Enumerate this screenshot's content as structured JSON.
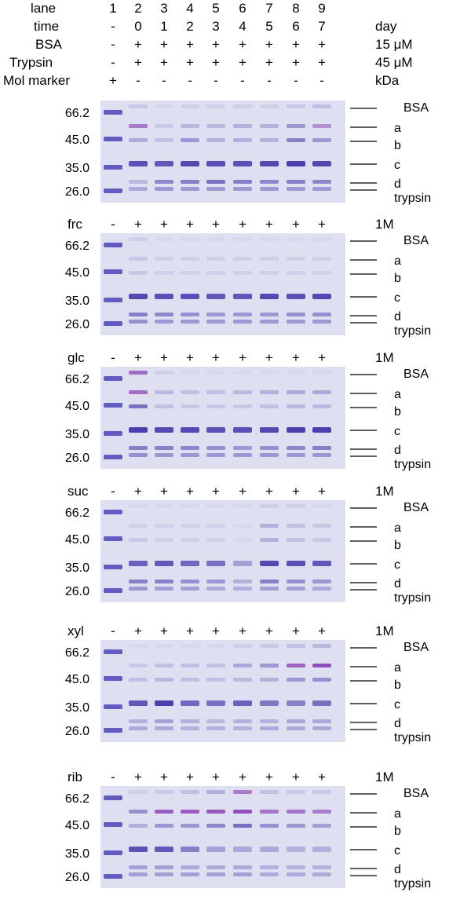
{
  "header": {
    "rows": [
      {
        "label": "lane",
        "values": [
          "1",
          "2",
          "3",
          "4",
          "5",
          "6",
          "7",
          "8",
          "9"
        ],
        "unit": ""
      },
      {
        "label": "time",
        "values": [
          "-",
          "0",
          "1",
          "2",
          "3",
          "4",
          "5",
          "6",
          "7"
        ],
        "unit": "day"
      },
      {
        "label": "BSA",
        "values": [
          "-",
          "+",
          "+",
          "+",
          "+",
          "+",
          "+",
          "+",
          "+"
        ],
        "unit": "15 μM"
      },
      {
        "label": "Trypsin",
        "values": [
          "-",
          "+",
          "+",
          "+",
          "+",
          "+",
          "+",
          "+",
          "+"
        ],
        "unit": "45 μM"
      },
      {
        "label": "Mol marker",
        "values": [
          "+",
          "-",
          "-",
          "-",
          "-",
          "-",
          "-",
          "-",
          "-"
        ],
        "unit": "kDa"
      }
    ]
  },
  "colors": {
    "gel_bg": "#d3d6ec",
    "band_dark": "#3b2fa6",
    "band_purple": "#8a3fb5",
    "band_marker": "#4a44b8"
  },
  "marker_weights": [
    "66.2",
    "45.0",
    "35.0",
    "26.0"
  ],
  "band_labels": {
    "bsa": "BSA",
    "a": "a",
    "b": "b",
    "c": "c",
    "d": "d",
    "trypsin": "trypsin"
  },
  "panels": [
    {
      "sugar": "",
      "signs": [],
      "conc": "",
      "intensities": {
        "bsa": [
          0,
          0.15,
          0.05,
          0.1,
          0.1,
          0.1,
          0.1,
          0.15,
          0.2
        ],
        "a": [
          0,
          0.7,
          0.15,
          0.25,
          0.25,
          0.3,
          0.3,
          0.45,
          0.55
        ],
        "b": [
          0,
          0.35,
          0.2,
          0.45,
          0.3,
          0.3,
          0.3,
          0.6,
          0.45
        ],
        "c": [
          0,
          0.9,
          0.85,
          0.95,
          0.9,
          0.9,
          0.95,
          1,
          0.95
        ],
        "d": [
          0,
          0.25,
          0.55,
          0.6,
          0.7,
          0.6,
          0.55,
          0.6,
          0.55
        ],
        "trypsin": [
          0,
          0.35,
          0.45,
          0.45,
          0.45,
          0.45,
          0.45,
          0.45,
          0.45
        ]
      }
    },
    {
      "sugar": "frc",
      "signs": [
        "-",
        "+",
        "+",
        "+",
        "+",
        "+",
        "+",
        "+",
        "+"
      ],
      "conc": "1M",
      "intensities": {
        "bsa": [
          0,
          0.1,
          0.05,
          0.05,
          0.05,
          0.05,
          0.05,
          0.05,
          0.05
        ],
        "a": [
          0,
          0.15,
          0.1,
          0.1,
          0.1,
          0.1,
          0.1,
          0.1,
          0.1
        ],
        "b": [
          0,
          0.15,
          0.1,
          0.1,
          0.1,
          0.1,
          0.1,
          0.1,
          0.1
        ],
        "c": [
          0,
          0.95,
          0.9,
          0.9,
          0.85,
          0.85,
          0.95,
          0.9,
          0.95
        ],
        "d": [
          0,
          0.6,
          0.55,
          0.5,
          0.45,
          0.45,
          0.45,
          0.5,
          0.5
        ],
        "trypsin": [
          0,
          0.5,
          0.45,
          0.45,
          0.45,
          0.45,
          0.45,
          0.45,
          0.45
        ]
      }
    },
    {
      "sugar": "glc",
      "signs": [
        "-",
        "+",
        "+",
        "+",
        "+",
        "+",
        "+",
        "+",
        "+"
      ],
      "conc": "1M",
      "intensities": {
        "bsa": [
          0,
          0.8,
          0.1,
          0.05,
          0.05,
          0.05,
          0.05,
          0.05,
          0.05
        ],
        "a": [
          0,
          0.8,
          0.25,
          0.2,
          0.2,
          0.25,
          0.3,
          0.35,
          0.35
        ],
        "b": [
          0,
          0.7,
          0.2,
          0.15,
          0.15,
          0.15,
          0.2,
          0.25,
          0.25
        ],
        "c": [
          0,
          1,
          0.95,
          0.95,
          0.9,
          0.9,
          0.95,
          1,
          1
        ],
        "d": [
          0,
          0.6,
          0.6,
          0.55,
          0.5,
          0.45,
          0.5,
          0.55,
          0.6
        ],
        "trypsin": [
          0,
          0.5,
          0.45,
          0.45,
          0.45,
          0.45,
          0.45,
          0.45,
          0.45
        ]
      }
    },
    {
      "sugar": "suc",
      "signs": [
        "-",
        "+",
        "+",
        "+",
        "+",
        "+",
        "+",
        "+",
        "+"
      ],
      "conc": "1M",
      "intensities": {
        "bsa": [
          0,
          0.05,
          0.05,
          0.05,
          0.05,
          0.05,
          0.1,
          0.1,
          0.05
        ],
        "a": [
          0,
          0.1,
          0.1,
          0.1,
          0.1,
          0.05,
          0.3,
          0.2,
          0.15
        ],
        "b": [
          0,
          0.15,
          0.1,
          0.1,
          0.1,
          0.05,
          0.3,
          0.2,
          0.15
        ],
        "c": [
          0,
          0.8,
          0.85,
          0.75,
          0.7,
          0.4,
          0.95,
          0.9,
          0.85
        ],
        "d": [
          0,
          0.6,
          0.6,
          0.5,
          0.45,
          0.3,
          0.6,
          0.5,
          0.45
        ],
        "trypsin": [
          0,
          0.45,
          0.4,
          0.4,
          0.35,
          0.3,
          0.4,
          0.4,
          0.35
        ]
      }
    },
    {
      "sugar": "xyl",
      "signs": [
        "-",
        "+",
        "+",
        "+",
        "+",
        "+",
        "+",
        "+",
        "+"
      ],
      "conc": "1M",
      "intensities": {
        "bsa": [
          0,
          0.05,
          0.05,
          0.05,
          0.05,
          0.1,
          0.15,
          0.2,
          0.25
        ],
        "a": [
          0,
          0.15,
          0.2,
          0.2,
          0.2,
          0.35,
          0.45,
          0.85,
          1
        ],
        "b": [
          0,
          0.2,
          0.25,
          0.2,
          0.2,
          0.25,
          0.3,
          0.45,
          0.5
        ],
        "c": [
          0,
          0.85,
          1,
          0.75,
          0.7,
          0.8,
          0.65,
          0.6,
          0.7
        ],
        "d": [
          0,
          0.3,
          0.4,
          0.3,
          0.25,
          0.3,
          0.3,
          0.35,
          0.35
        ],
        "trypsin": [
          0,
          0.35,
          0.35,
          0.3,
          0.3,
          0.3,
          0.35,
          0.35,
          0.35
        ]
      }
    },
    {
      "sugar": "rib",
      "signs": [
        "-",
        "+",
        "+",
        "+",
        "+",
        "+",
        "+",
        "+",
        "+"
      ],
      "conc": "1M",
      "intensities": {
        "bsa": [
          0,
          0.1,
          0.15,
          0.2,
          0.3,
          0.7,
          0.2,
          0.15,
          0.15
        ],
        "a": [
          0,
          0.5,
          0.9,
          0.9,
          0.95,
          1,
          0.75,
          0.75,
          0.7
        ],
        "b": [
          0,
          0.3,
          0.45,
          0.45,
          0.55,
          0.7,
          0.5,
          0.45,
          0.4
        ],
        "c": [
          0,
          0.9,
          0.85,
          0.6,
          0.4,
          0.35,
          0.35,
          0.3,
          0.3
        ],
        "d": [
          0,
          0.4,
          0.4,
          0.35,
          0.35,
          0.35,
          0.3,
          0.3,
          0.3
        ],
        "trypsin": [
          0,
          0.4,
          0.4,
          0.4,
          0.4,
          0.4,
          0.35,
          0.35,
          0.35
        ]
      }
    }
  ]
}
